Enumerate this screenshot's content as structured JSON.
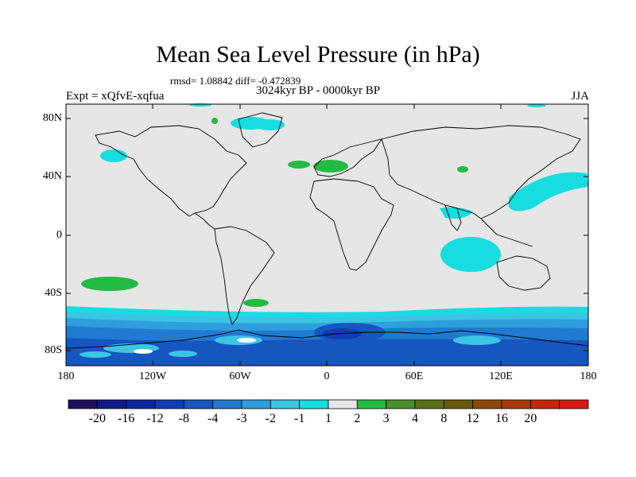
{
  "title": "Mean Sea Level Pressure (in hPa)",
  "stats_line": "rmsd= 1.08842 diff= -0.472839",
  "subtitle": "3024kyr BP - 0000kyr BP",
  "experiment": "Expt = xQfvE-xqfua",
  "season": "JJA",
  "lat_labels": [
    "80N",
    "40N",
    "0",
    "40S",
    "80S"
  ],
  "lon_labels": [
    "180",
    "120W",
    "60W",
    "0",
    "60E",
    "120E",
    "180"
  ],
  "colorbar": {
    "labels": [
      "-20",
      "-16",
      "-12",
      "-8",
      "-4",
      "-3",
      "-2",
      "-1",
      "1",
      "2",
      "3",
      "4",
      "8",
      "12",
      "16",
      "20"
    ],
    "colors": [
      "#1e0e5e",
      "#0d1c86",
      "#0c28a0",
      "#0f3cb4",
      "#1556c0",
      "#1f7ad0",
      "#2e9edc",
      "#3cc4e4",
      "#17dde0",
      "#e6e6e6",
      "#22bb44",
      "#4a8f2a",
      "#5a6f12",
      "#6a5a08",
      "#8c4a06",
      "#a83a06",
      "#c42808",
      "#dc1a10"
    ]
  },
  "chart_data": {
    "type": "heatmap",
    "title": "Mean Sea Level Pressure (in hPa)",
    "subtitle": "3024kyr BP - 0000kyr BP",
    "units": "hPa",
    "xlim": [
      -180,
      180
    ],
    "ylim": [
      -90,
      90
    ],
    "x_ticks": [
      -180,
      -120,
      -60,
      0,
      60,
      120,
      180
    ],
    "y_ticks": [
      80,
      40,
      0,
      -40,
      -80
    ],
    "contour_levels": [
      -20,
      -16,
      -12,
      -8,
      -4,
      -3,
      -2,
      -1,
      1,
      2,
      3,
      4,
      8,
      12,
      16,
      20
    ],
    "rmsd": 1.08842,
    "diff": -0.472839
  }
}
